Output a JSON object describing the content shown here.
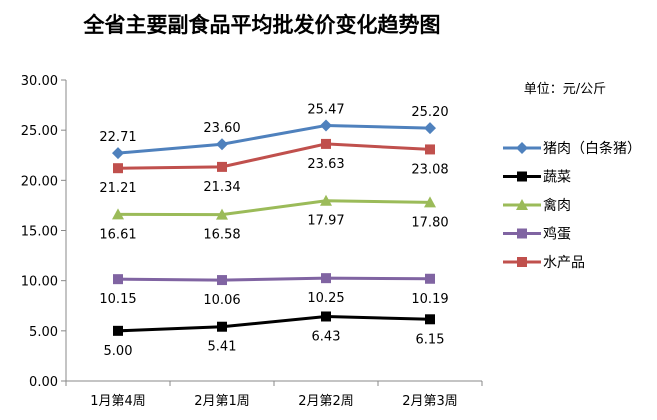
{
  "chart_data": {
    "type": "line",
    "title": "全省主要副食品平均批发价变化趋势图",
    "unit_label": "单位：元/公斤",
    "categories": [
      "1月第4周",
      "2月第1周",
      "2月第2周",
      "2月第3周"
    ],
    "ylim": [
      0,
      30
    ],
    "yticks": [
      "0.00",
      "5.00",
      "10.00",
      "15.00",
      "20.00",
      "25.00",
      "30.00"
    ],
    "grid": false,
    "legend_position": "right",
    "series": [
      {
        "name": "猪肉（白条猪）",
        "values": [
          22.71,
          23.6,
          25.47,
          25.2
        ],
        "labels": [
          "22.71",
          "23.60",
          "25.47",
          "25.20"
        ],
        "color": "#4F81BD",
        "marker": "diamond",
        "label_pos": "above"
      },
      {
        "name": "蔬菜",
        "values": [
          5.0,
          5.41,
          6.43,
          6.15
        ],
        "labels": [
          "5.00",
          "5.41",
          "6.43",
          "6.15"
        ],
        "color": "#000000",
        "marker": "square",
        "label_pos": "below"
      },
      {
        "name": "禽肉",
        "values": [
          16.61,
          16.58,
          17.97,
          17.8
        ],
        "labels": [
          "16.61",
          "16.58",
          "17.97",
          "17.80"
        ],
        "color": "#9BBB59",
        "marker": "triangle",
        "label_pos": "below"
      },
      {
        "name": "鸡蛋",
        "values": [
          10.15,
          10.06,
          10.25,
          10.19
        ],
        "labels": [
          "10.15",
          "10.06",
          "10.25",
          "10.19"
        ],
        "color": "#8064A2",
        "marker": "square",
        "label_pos": "below"
      },
      {
        "name": "水产品",
        "values": [
          21.21,
          21.34,
          23.63,
          23.08
        ],
        "labels": [
          "21.21",
          "21.34",
          "23.63",
          "23.08"
        ],
        "color": "#C0504D",
        "marker": "square",
        "label_pos": "below"
      }
    ]
  }
}
